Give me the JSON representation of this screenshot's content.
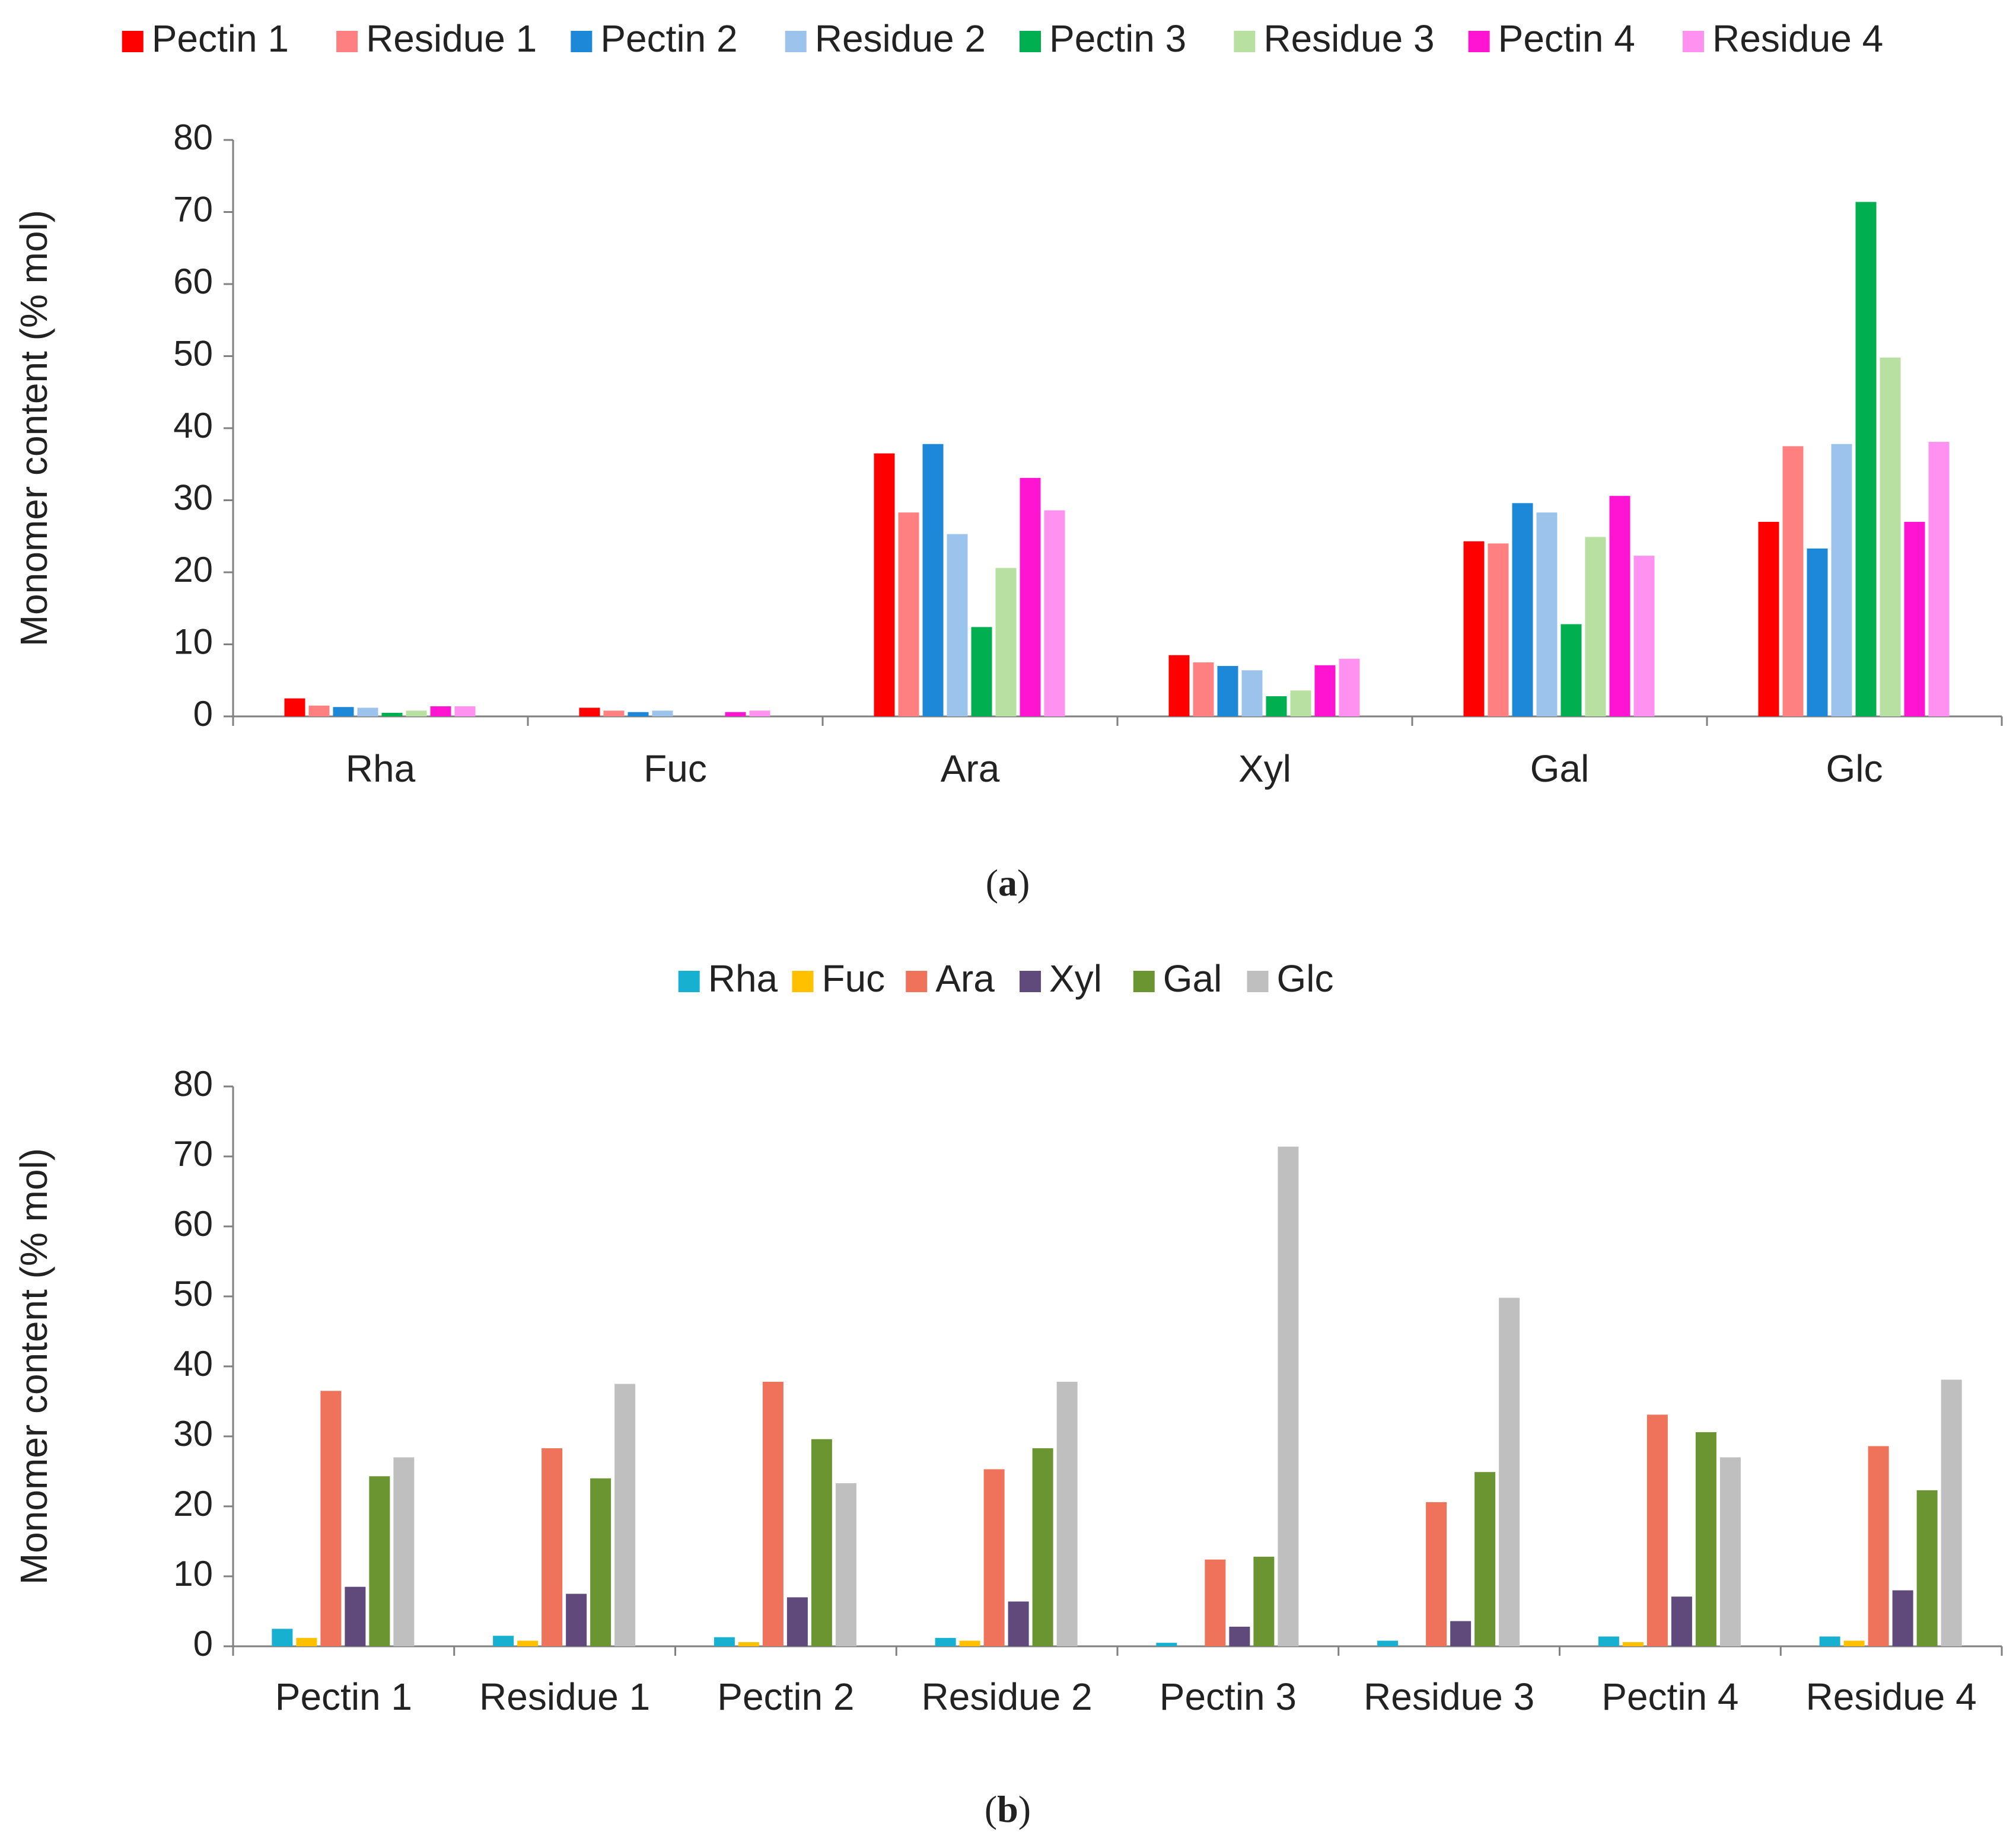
{
  "chart_data": [
    {
      "id": "a",
      "type": "bar",
      "ylabel": "Monomer content (% mol)",
      "ylim": [
        0,
        80
      ],
      "yticks": [
        0,
        10,
        20,
        30,
        40,
        50,
        60,
        70,
        80
      ],
      "categories": [
        "Rha",
        "Fuc",
        "Ara",
        "Xyl",
        "Gal",
        "Glc"
      ],
      "legend_position": "top",
      "series": [
        {
          "name": "Pectin 1",
          "color": "#ff0000",
          "values": [
            2.5,
            1.2,
            36.5,
            8.5,
            24.3,
            27.0
          ]
        },
        {
          "name": "Residue 1",
          "color": "#ff8080",
          "values": [
            1.5,
            0.8,
            28.3,
            7.5,
            24.0,
            37.5
          ]
        },
        {
          "name": "Pectin 2",
          "color": "#1e88d8",
          "values": [
            1.3,
            0.6,
            37.8,
            7.0,
            29.6,
            23.3
          ]
        },
        {
          "name": "Residue 2",
          "color": "#9cc3ec",
          "values": [
            1.2,
            0.8,
            25.3,
            6.4,
            28.3,
            37.8
          ]
        },
        {
          "name": "Pectin 3",
          "color": "#00b050",
          "values": [
            0.5,
            0,
            12.4,
            2.8,
            12.8,
            71.4
          ]
        },
        {
          "name": "Residue 3",
          "color": "#b8e0a0",
          "values": [
            0.8,
            0,
            20.6,
            3.6,
            24.9,
            49.8
          ]
        },
        {
          "name": "Pectin 4",
          "color": "#ff14d2",
          "values": [
            1.4,
            0.6,
            33.1,
            7.1,
            30.6,
            27.0
          ]
        },
        {
          "name": "Residue 4",
          "color": "#ff91f0",
          "values": [
            1.4,
            0.8,
            28.6,
            8.0,
            22.3,
            38.1
          ]
        }
      ]
    },
    {
      "id": "b",
      "type": "bar",
      "ylabel": "Monomer content (% mol)",
      "ylim": [
        0,
        80
      ],
      "yticks": [
        0,
        10,
        20,
        30,
        40,
        50,
        60,
        70,
        80
      ],
      "categories": [
        "Pectin 1",
        "Residue 1",
        "Pectin 2",
        "Residue 2",
        "Pectin 3",
        "Residue 3",
        "Pectin 4",
        "Residue 4"
      ],
      "legend_position": "top",
      "series": [
        {
          "name": "Rha",
          "color": "#17b0d0",
          "values": [
            2.5,
            1.5,
            1.3,
            1.2,
            0.5,
            0.8,
            1.4,
            1.4
          ]
        },
        {
          "name": "Fuc",
          "color": "#ffc000",
          "values": [
            1.2,
            0.8,
            0.6,
            0.8,
            0,
            0,
            0.6,
            0.8
          ]
        },
        {
          "name": "Ara",
          "color": "#ee735a",
          "values": [
            36.5,
            28.3,
            37.8,
            25.3,
            12.4,
            20.6,
            33.1,
            28.6
          ]
        },
        {
          "name": "Xyl",
          "color": "#604a7b",
          "values": [
            8.5,
            7.5,
            7.0,
            6.4,
            2.8,
            3.6,
            7.1,
            8.0
          ]
        },
        {
          "name": "Gal",
          "color": "#6a9530",
          "values": [
            24.3,
            24.0,
            29.6,
            28.3,
            12.8,
            24.9,
            30.6,
            22.3
          ]
        },
        {
          "name": "Glc",
          "color": "#bfbfbf",
          "values": [
            27.0,
            37.5,
            23.3,
            37.8,
            71.4,
            49.8,
            27.0,
            38.1
          ]
        }
      ]
    }
  ],
  "captions": {
    "a": {
      "open": "(",
      "letter": "a",
      "close": ")"
    },
    "b": {
      "open": "(",
      "letter": "b",
      "close": ")"
    }
  }
}
